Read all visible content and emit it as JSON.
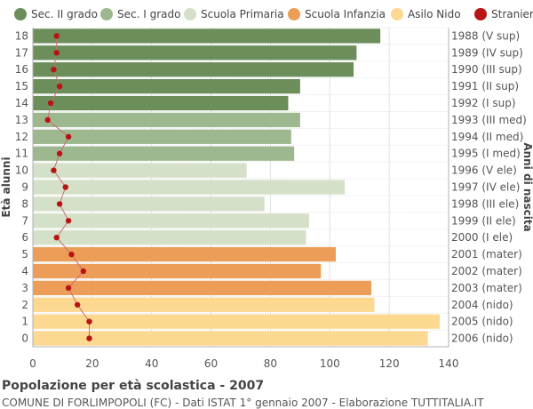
{
  "chart_data": {
    "type": "bar",
    "orientation": "horizontal",
    "title": "Popolazione per età scolastica - 2007",
    "subtitle": "COMUNE DI FORLIMPOPOLI (FC) - Dati ISTAT 1° gennaio 2007 - Elaborazione TUTTITALIA.IT",
    "ylabel": "Età alunni",
    "ylabel_right": "Anni di nascita",
    "xlim": [
      0,
      140
    ],
    "xticks": [
      0,
      20,
      40,
      60,
      80,
      100,
      120,
      140
    ],
    "grid": true,
    "legend_position": "top",
    "legend": [
      {
        "name": "Sec. II grado",
        "color": "#6b8e5a"
      },
      {
        "name": "Sec. I grado",
        "color": "#9db88f"
      },
      {
        "name": "Scuola Primaria",
        "color": "#d5e0c8"
      },
      {
        "name": "Scuola Infanzia",
        "color": "#ec9e58"
      },
      {
        "name": "Asilo Nido",
        "color": "#fdd891"
      },
      {
        "name": "Stranieri",
        "color": "#b81414"
      }
    ],
    "rows": [
      {
        "age": "18",
        "year": "1988 (V sup)",
        "value": 117,
        "stranieri": 8,
        "group": 0
      },
      {
        "age": "17",
        "year": "1989 (IV sup)",
        "value": 109,
        "stranieri": 8,
        "group": 0
      },
      {
        "age": "16",
        "year": "1990 (III sup)",
        "value": 108,
        "stranieri": 7,
        "group": 0
      },
      {
        "age": "15",
        "year": "1991 (II sup)",
        "value": 90,
        "stranieri": 9,
        "group": 0
      },
      {
        "age": "14",
        "year": "1992 (I sup)",
        "value": 86,
        "stranieri": 6,
        "group": 0
      },
      {
        "age": "13",
        "year": "1993 (III med)",
        "value": 90,
        "stranieri": 5,
        "group": 1
      },
      {
        "age": "12",
        "year": "1994 (II med)",
        "value": 87,
        "stranieri": 12,
        "group": 1
      },
      {
        "age": "11",
        "year": "1995 (I med)",
        "value": 88,
        "stranieri": 9,
        "group": 1
      },
      {
        "age": "10",
        "year": "1996 (V ele)",
        "value": 72,
        "stranieri": 7,
        "group": 2
      },
      {
        "age": "9",
        "year": "1997 (IV ele)",
        "value": 105,
        "stranieri": 11,
        "group": 2
      },
      {
        "age": "8",
        "year": "1998 (III ele)",
        "value": 78,
        "stranieri": 9,
        "group": 2
      },
      {
        "age": "7",
        "year": "1999 (II ele)",
        "value": 93,
        "stranieri": 12,
        "group": 2
      },
      {
        "age": "6",
        "year": "2000 (I ele)",
        "value": 92,
        "stranieri": 8,
        "group": 2
      },
      {
        "age": "5",
        "year": "2001 (mater)",
        "value": 102,
        "stranieri": 13,
        "group": 3
      },
      {
        "age": "4",
        "year": "2002 (mater)",
        "value": 97,
        "stranieri": 17,
        "group": 3
      },
      {
        "age": "3",
        "year": "2003 (mater)",
        "value": 114,
        "stranieri": 12,
        "group": 3
      },
      {
        "age": "2",
        "year": "2004 (nido)",
        "value": 115,
        "stranieri": 15,
        "group": 4
      },
      {
        "age": "1",
        "year": "2005 (nido)",
        "value": 137,
        "stranieri": 19,
        "group": 4
      },
      {
        "age": "0",
        "year": "2006 (nido)",
        "value": 133,
        "stranieri": 19,
        "group": 4
      }
    ]
  }
}
